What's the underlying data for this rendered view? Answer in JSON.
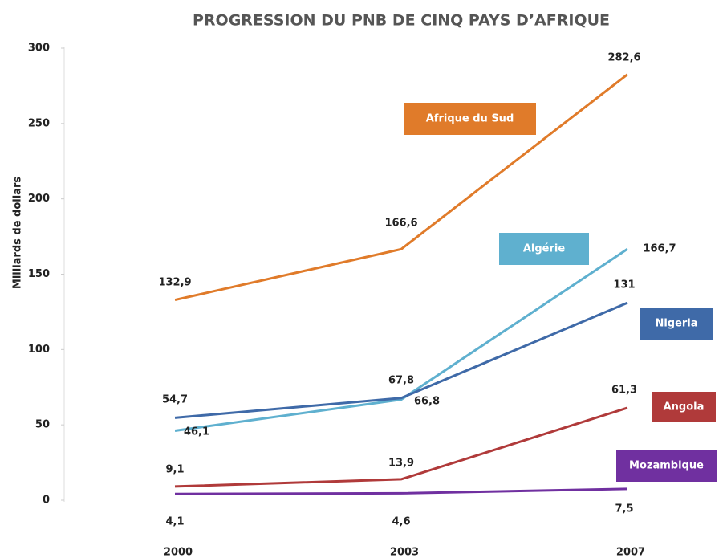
{
  "chart_data": {
    "type": "line",
    "title": "PROGRESSION DU PNB DE CINQ PAYS D’AFRIQUE",
    "y_label": "Milliards de dollars",
    "categories": [
      "2000",
      "2003",
      "2007"
    ],
    "ylim": [
      0,
      300
    ],
    "yticks": [
      0,
      50,
      100,
      150,
      200,
      250,
      300
    ],
    "series": [
      {
        "name": "Afrique du Sud",
        "color": "#e07b2a",
        "values": [
          132.9,
          166.6,
          282.6
        ],
        "value_labels": [
          "132,9",
          "166,6",
          "282,6"
        ]
      },
      {
        "name": "Algérie",
        "color": "#5fb0cf",
        "values": [
          46.1,
          66.8,
          166.7
        ],
        "value_labels": [
          "46,1",
          "66,8",
          "166,7"
        ]
      },
      {
        "name": "Nigeria",
        "color": "#3f6aa8",
        "values": [
          54.7,
          67.8,
          131
        ],
        "value_labels": [
          "54,7",
          "67,8",
          "131"
        ]
      },
      {
        "name": "Angola",
        "color": "#b03a3a",
        "values": [
          9.1,
          13.9,
          61.3
        ],
        "value_labels": [
          "9,1",
          "13,9",
          "61,3"
        ]
      },
      {
        "name": "Mozambique",
        "color": "#7030a0",
        "values": [
          4.1,
          4.6,
          7.5
        ],
        "value_labels": [
          "4,1",
          "4,6",
          "7,5"
        ]
      }
    ]
  }
}
